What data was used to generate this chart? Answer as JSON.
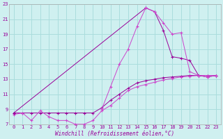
{
  "xlabel": "Windchill (Refroidissement éolien,°C)",
  "bg_color": "#cff0f0",
  "grid_color": "#aadddd",
  "line_color1": "#990099",
  "line_color2": "#cc44cc",
  "xlim": [
    -0.5,
    23.5
  ],
  "ylim": [
    7,
    23
  ],
  "yticks": [
    7,
    9,
    11,
    13,
    15,
    17,
    19,
    21,
    23
  ],
  "xticks": [
    0,
    1,
    2,
    3,
    4,
    5,
    6,
    7,
    8,
    9,
    10,
    11,
    12,
    13,
    14,
    15,
    16,
    17,
    18,
    19,
    20,
    21,
    22,
    23
  ],
  "s1_x": [
    0,
    1,
    2,
    3,
    4,
    5,
    6,
    7,
    8,
    9,
    10,
    11,
    12,
    13,
    14,
    15,
    16,
    17,
    18,
    19,
    20,
    21,
    22,
    23
  ],
  "s1_y": [
    8.5,
    8.5,
    8.5,
    8.5,
    8.5,
    8.5,
    8.5,
    8.5,
    8.5,
    8.5,
    9.2,
    10.2,
    11.0,
    11.8,
    12.5,
    12.8,
    13.0,
    13.2,
    13.3,
    13.4,
    13.5,
    13.5,
    13.5,
    13.5
  ],
  "s2_x": [
    0,
    1,
    2,
    3,
    4,
    5,
    6,
    7,
    8,
    9,
    10,
    11,
    12,
    13,
    14,
    15,
    16,
    17,
    18,
    19,
    20,
    21,
    22,
    23
  ],
  "s2_y": [
    8.3,
    8.5,
    7.5,
    8.8,
    8.0,
    7.5,
    7.5,
    7.0,
    7.0,
    7.5,
    8.8,
    9.5,
    10.5,
    11.5,
    12.0,
    12.3,
    12.6,
    12.9,
    13.1,
    13.3,
    13.4,
    13.5,
    13.5,
    13.5
  ],
  "s3_x": [
    0,
    15,
    16,
    17,
    18,
    19,
    20,
    21,
    22,
    23
  ],
  "s3_y": [
    8.5,
    22.5,
    22.0,
    19.5,
    16.0,
    15.8,
    15.5,
    13.5,
    13.3,
    13.5
  ],
  "s4_x": [
    10,
    11,
    12,
    13,
    14,
    15,
    16,
    17,
    18,
    19,
    20,
    21,
    22,
    23
  ],
  "s4_y": [
    9.0,
    12.0,
    15.0,
    17.0,
    20.0,
    22.5,
    22.0,
    20.5,
    19.0,
    19.2,
    14.0,
    13.5,
    13.3,
    13.5
  ]
}
